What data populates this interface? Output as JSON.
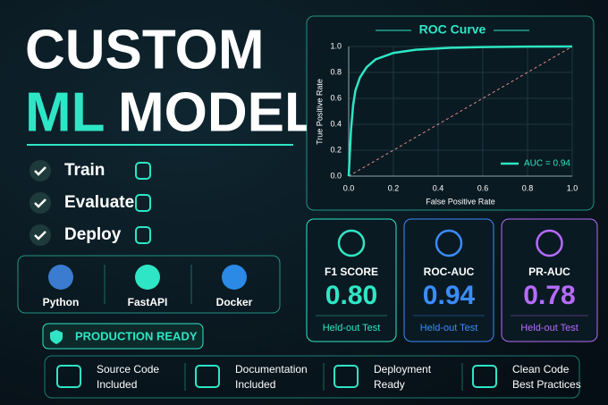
{
  "header": {
    "title_line1": "CUSTOM",
    "title_accent": "ML",
    "title_rest": "MODEL"
  },
  "checklist": [
    "Train",
    "Evaluate",
    "Deploy"
  ],
  "tools": [
    "Python",
    "FastAPI",
    "Docker"
  ],
  "badge": "PRODUCTION READY",
  "features": [
    [
      "Source Code",
      "Included"
    ],
    [
      "Documentation",
      "Included"
    ],
    [
      "Deployment",
      "Ready"
    ],
    [
      "Clean Code",
      "Best Practices"
    ]
  ],
  "chart_data": {
    "type": "line",
    "title": "ROC Curve",
    "x_label": "False Positive Rate",
    "y_label": "True Positive Rate",
    "xlim": [
      0,
      1
    ],
    "ylim": [
      0,
      1
    ],
    "xticks": [
      {
        "value": 0,
        "label": "0.0"
      },
      0.2,
      0.4,
      0.6,
      0.8,
      {
        "value": 1,
        "label": "1.0"
      }
    ],
    "yticks": [
      {
        "value": 0,
        "label": "0.0"
      },
      0.2,
      0.4,
      0.6,
      0.8,
      {
        "value": 1,
        "label": "1.0"
      }
    ],
    "grid": true,
    "series": [
      {
        "name": "AUC = 0.94",
        "color": "#2ee6c5",
        "x": [
          0,
          0.01,
          0.02,
          0.03,
          0.05,
          0.08,
          0.12,
          0.2,
          0.3,
          0.45,
          0.6,
          0.8,
          1
        ],
        "values": [
          0,
          0.35,
          0.55,
          0.66,
          0.76,
          0.84,
          0.9,
          0.95,
          0.975,
          0.99,
          0.996,
          0.999,
          1
        ]
      }
    ]
  },
  "metrics": [
    {
      "label": "F1 SCORE",
      "value": "0.80",
      "note": "Held-out Test",
      "color": "#2ee6c5"
    },
    {
      "label": "ROC-AUC",
      "value": "0.94",
      "note": "Held-out Test",
      "color": "#3b8cff"
    },
    {
      "label": "PR-AUC",
      "value": "0.78",
      "note": "Held-out Test",
      "color": "#b66bff"
    }
  ]
}
